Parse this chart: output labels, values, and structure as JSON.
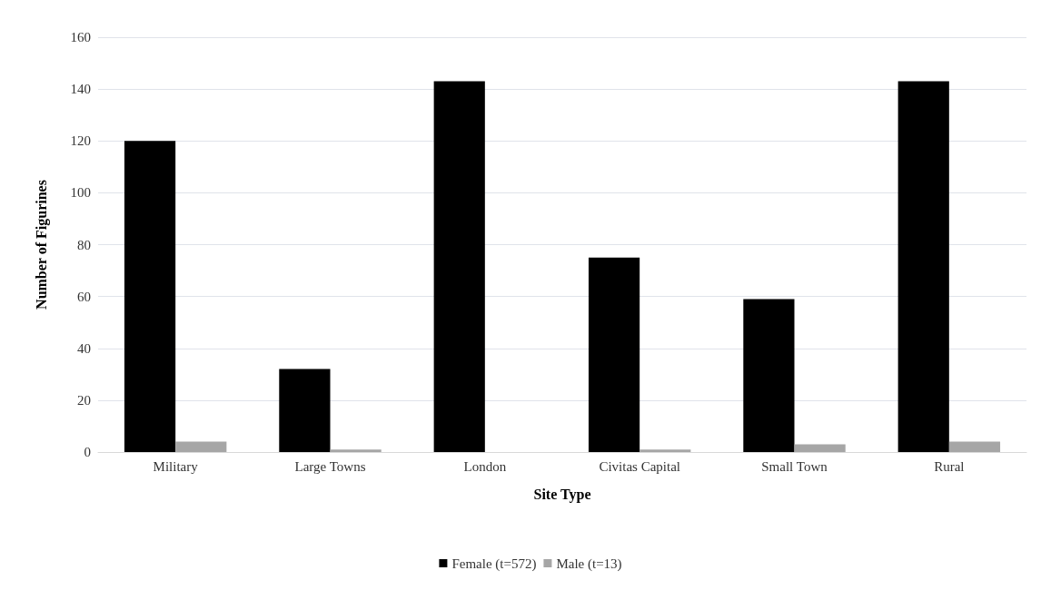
{
  "chart_data": {
    "type": "bar",
    "xlabel": "Site Type",
    "ylabel": "Number of Figurines",
    "categories": [
      "Military",
      "Large Towns",
      "London",
      "Civitas Capital",
      "Small Town",
      "Rural"
    ],
    "series": [
      {
        "name": "Female (t=572)",
        "color": "#000000",
        "values": [
          120,
          32,
          143,
          75,
          59,
          143
        ]
      },
      {
        "name": "Male (t=13)",
        "color": "#a6a6a6",
        "values": [
          4,
          1,
          0,
          1,
          3,
          4
        ]
      }
    ],
    "ylim": [
      0,
      160
    ],
    "yticks": [
      0,
      20,
      40,
      60,
      80,
      100,
      120,
      140,
      160
    ],
    "grid": "y",
    "legend": "bottom"
  }
}
